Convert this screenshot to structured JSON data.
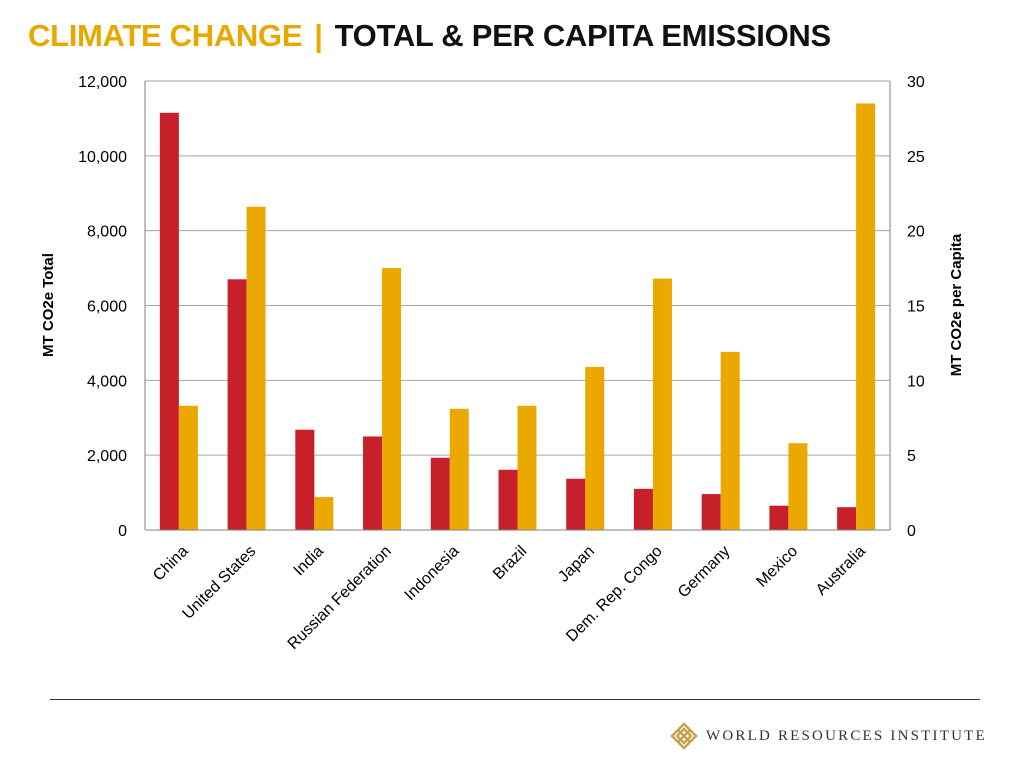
{
  "header": {
    "title_part1": "CLIMATE CHANGE",
    "separator": "|",
    "title_part2": "TOTAL & PER CAPITA EMISSIONS"
  },
  "footer": {
    "org_name": "WORLD RESOURCES INSTITUTE",
    "logo_icon": "wri-knot-logo-icon"
  },
  "colors": {
    "total": "#c8202a",
    "per_capita": "#eaa800",
    "accent": "#e8a800"
  },
  "chart_data": {
    "type": "bar",
    "title": "TOTAL & PER CAPITA EMISSIONS",
    "categories": [
      "China",
      "United States",
      "India",
      "Russian Federation",
      "Indonesia",
      "Brazil",
      "Japan",
      "Dem. Rep. Congo",
      "Germany",
      "Mexico",
      "Australia"
    ],
    "series": [
      {
        "values": [
          11150,
          6700,
          2680,
          2500,
          1930,
          1610,
          1370,
          1100,
          960,
          650,
          610
        ],
        "axis": "left",
        "color": "#c8202a"
      },
      {
        "values": [
          8.3,
          21.6,
          2.2,
          17.5,
          8.1,
          8.3,
          10.9,
          16.8,
          11.9,
          5.8,
          28.5
        ],
        "axis": "right",
        "color": "#eaa800"
      }
    ],
    "ylabel": "MT CO2e Total",
    "ylim": [
      0,
      12000
    ],
    "yticks": [
      "0",
      "2,000",
      "4,000",
      "6,000",
      "8,000",
      "10,000",
      "12,000"
    ],
    "y2label": "MT CO2e per Capita",
    "y2lim": [
      0,
      30
    ],
    "y2ticks": [
      "0",
      "5",
      "10",
      "15",
      "20",
      "25",
      "30"
    ],
    "grid": true,
    "legend": "none"
  }
}
